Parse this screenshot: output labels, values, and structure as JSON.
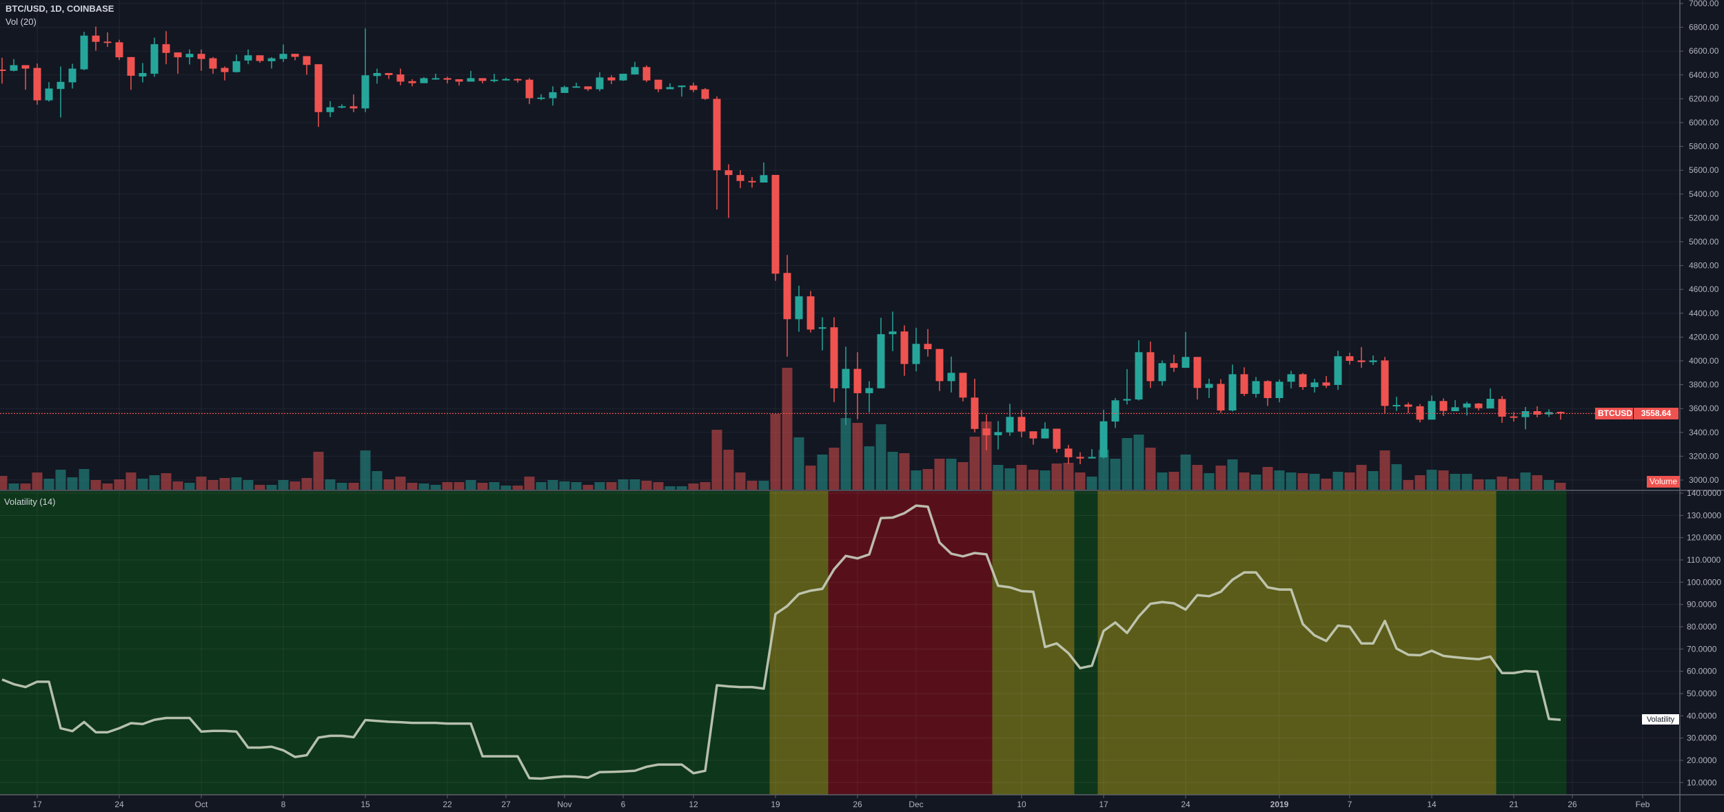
{
  "header": {
    "symbol_title": "BTC/USD, 1D, COINBASE",
    "volume_study": "Vol (20)"
  },
  "volatility_pane": {
    "title": "Volatility (14)",
    "series_tag": "Volatility"
  },
  "price_tags": {
    "symbol": "BTCUSD",
    "last_price": "3558.64",
    "volume_tag": "Volume"
  },
  "colors": {
    "background": "#131722",
    "up": "#26a69a",
    "down": "#ef5350",
    "grid": "#1f2433",
    "text": "#b2b5be",
    "volatility_line": "#c9cfbd",
    "zone_low": "#0e361a",
    "zone_mid": "#5b5c1a",
    "zone_high": "#57101a"
  },
  "chart_data": [
    {
      "type": "candlestick",
      "title": "BTC/USD, 1D, COINBASE",
      "x_unit": "days since Sep 17 2018",
      "start_day": -3,
      "last_price": 3558.64,
      "ylim": [
        2950,
        7000
      ],
      "y_ticks": [
        "7000.00",
        "6800.00",
        "6600.00",
        "6400.00",
        "6200.00",
        "6000.00",
        "5800.00",
        "5600.00",
        "5400.00",
        "5200.00",
        "5000.00",
        "4800.00",
        "4600.00",
        "4400.00",
        "4200.00",
        "4000.00",
        "3800.00",
        "3600.00",
        "3400.00",
        "3200.00",
        "3000.00"
      ],
      "x_ticks": [
        {
          "label": "17",
          "day": 0
        },
        {
          "label": "24",
          "day": 7
        },
        {
          "label": "Oct",
          "day": 14
        },
        {
          "label": "8",
          "day": 21
        },
        {
          "label": "15",
          "day": 28
        },
        {
          "label": "22",
          "day": 35
        },
        {
          "label": "27",
          "day": 40
        },
        {
          "label": "Nov",
          "day": 45
        },
        {
          "label": "6",
          "day": 50
        },
        {
          "label": "12",
          "day": 56
        },
        {
          "label": "19",
          "day": 63
        },
        {
          "label": "26",
          "day": 70
        },
        {
          "label": "Dec",
          "day": 75
        },
        {
          "label": "10",
          "day": 84
        },
        {
          "label": "17",
          "day": 91
        },
        {
          "label": "24",
          "day": 98
        },
        {
          "label": "2019",
          "day": 106,
          "bold": true
        },
        {
          "label": "7",
          "day": 112
        },
        {
          "label": "14",
          "day": 119
        },
        {
          "label": "21",
          "day": 126
        },
        {
          "label": "26",
          "day": 131
        },
        {
          "label": "Feb",
          "day": 137
        }
      ],
      "ohlc": [
        [
          6445,
          6544,
          6327,
          6440
        ],
        [
          6435,
          6533,
          6430,
          6482
        ],
        [
          6482,
          6482,
          6276,
          6453
        ],
        [
          6459,
          6496,
          6150,
          6187
        ],
        [
          6187,
          6340,
          6176,
          6286
        ],
        [
          6282,
          6471,
          6043,
          6342
        ],
        [
          6338,
          6494,
          6286,
          6453
        ],
        [
          6447,
          6762,
          6440,
          6730
        ],
        [
          6730,
          6806,
          6603,
          6678
        ],
        [
          6680,
          6757,
          6635,
          6675
        ],
        [
          6674,
          6695,
          6525,
          6548
        ],
        [
          6550,
          6550,
          6275,
          6393
        ],
        [
          6387,
          6500,
          6337,
          6416
        ],
        [
          6410,
          6713,
          6385,
          6658
        ],
        [
          6658,
          6767,
          6490,
          6585
        ],
        [
          6589,
          6589,
          6410,
          6548
        ],
        [
          6548,
          6614,
          6488,
          6577
        ],
        [
          6577,
          6614,
          6435,
          6534
        ],
        [
          6540,
          6550,
          6410,
          6453
        ],
        [
          6459,
          6471,
          6354,
          6424
        ],
        [
          6424,
          6570,
          6420,
          6515
        ],
        [
          6521,
          6614,
          6490,
          6565
        ],
        [
          6565,
          6565,
          6502,
          6517
        ],
        [
          6515,
          6550,
          6453,
          6540
        ],
        [
          6534,
          6656,
          6509,
          6577
        ],
        [
          6577,
          6577,
          6523,
          6552
        ],
        [
          6558,
          6558,
          6402,
          6484
        ],
        [
          6490,
          6490,
          5964,
          6088
        ],
        [
          6088,
          6180,
          6046,
          6129
        ],
        [
          6129,
          6154,
          6120,
          6137
        ],
        [
          6137,
          6236,
          6088,
          6119
        ],
        [
          6119,
          6790,
          6088,
          6397
        ],
        [
          6391,
          6453,
          6327,
          6416
        ],
        [
          6416,
          6416,
          6366,
          6399
        ],
        [
          6404,
          6453,
          6313,
          6344
        ],
        [
          6348,
          6364,
          6304,
          6331
        ],
        [
          6331,
          6381,
          6331,
          6373
        ],
        [
          6364,
          6410,
          6360,
          6373
        ],
        [
          6373,
          6385,
          6329,
          6360
        ],
        [
          6364,
          6364,
          6311,
          6344
        ],
        [
          6344,
          6434,
          6344,
          6373
        ],
        [
          6373,
          6373,
          6329,
          6350
        ],
        [
          6350,
          6410,
          6337,
          6360
        ],
        [
          6354,
          6377,
          6354,
          6366
        ],
        [
          6366,
          6371,
          6335,
          6354
        ],
        [
          6360,
          6373,
          6155,
          6205
        ],
        [
          6206,
          6238,
          6188,
          6210
        ],
        [
          6205,
          6305,
          6143,
          6255
        ],
        [
          6249,
          6310,
          6249,
          6298
        ],
        [
          6294,
          6335,
          6294,
          6304
        ],
        [
          6304,
          6304,
          6265,
          6280
        ],
        [
          6280,
          6422,
          6263,
          6379
        ],
        [
          6379,
          6397,
          6323,
          6354
        ],
        [
          6354,
          6410,
          6350,
          6410
        ],
        [
          6404,
          6510,
          6404,
          6466
        ],
        [
          6466,
          6480,
          6340,
          6354
        ],
        [
          6360,
          6360,
          6255,
          6280
        ],
        [
          6280,
          6330,
          6280,
          6298
        ],
        [
          6298,
          6311,
          6218,
          6311
        ],
        [
          6311,
          6335,
          6255,
          6274
        ],
        [
          6280,
          6290,
          6190,
          6199
        ],
        [
          6199,
          6220,
          5270,
          5600
        ],
        [
          5600,
          5650,
          5200,
          5560
        ],
        [
          5560,
          5600,
          5450,
          5510
        ],
        [
          5510,
          5543,
          5454,
          5505
        ],
        [
          5497,
          5665,
          5497,
          5559
        ],
        [
          5561,
          5561,
          4672,
          4732
        ],
        [
          4738,
          4889,
          4036,
          4350
        ],
        [
          4350,
          4631,
          4245,
          4542
        ],
        [
          4542,
          4587,
          4238,
          4263
        ],
        [
          4270,
          4366,
          4088,
          4282
        ],
        [
          4282,
          4366,
          3654,
          3770
        ],
        [
          3770,
          4119,
          3462,
          3933
        ],
        [
          3933,
          4073,
          3510,
          3729
        ],
        [
          3729,
          3830,
          3568,
          3772
        ],
        [
          3770,
          4362,
          3770,
          4224
        ],
        [
          4224,
          4414,
          4082,
          4247
        ],
        [
          4247,
          4298,
          3875,
          3974
        ],
        [
          3974,
          4278,
          3912,
          4143
        ],
        [
          4143,
          4267,
          4036,
          4098
        ],
        [
          4100,
          4100,
          3747,
          3830
        ],
        [
          3830,
          4036,
          3735,
          3900
        ],
        [
          3900,
          3900,
          3660,
          3692
        ],
        [
          3692,
          3850,
          3400,
          3429
        ],
        [
          3433,
          3551,
          3250,
          3376
        ],
        [
          3376,
          3495,
          3256,
          3403
        ],
        [
          3400,
          3640,
          3371,
          3530
        ],
        [
          3530,
          3588,
          3359,
          3407
        ],
        [
          3409,
          3409,
          3297,
          3349
        ],
        [
          3349,
          3485,
          3349,
          3431
        ],
        [
          3431,
          3431,
          3231,
          3262
        ],
        [
          3264,
          3295,
          3137,
          3191
        ],
        [
          3194,
          3233,
          3133,
          3181
        ],
        [
          3181,
          3260,
          3181,
          3194
        ],
        [
          3190,
          3590,
          3181,
          3493
        ],
        [
          3491,
          3688,
          3437,
          3669
        ],
        [
          3667,
          3931,
          3634,
          3680
        ],
        [
          3676,
          4173,
          3667,
          4073
        ],
        [
          4073,
          4162,
          3773,
          3830
        ],
        [
          3830,
          4004,
          3792,
          3981
        ],
        [
          3981,
          4052,
          3908,
          3942
        ],
        [
          3942,
          4243,
          3942,
          4033
        ],
        [
          4033,
          4033,
          3676,
          3773
        ],
        [
          3773,
          3850,
          3688,
          3807
        ],
        [
          3807,
          3846,
          3564,
          3584
        ],
        [
          3584,
          3969,
          3576,
          3888
        ],
        [
          3888,
          3946,
          3705,
          3723
        ],
        [
          3723,
          3865,
          3692,
          3830
        ],
        [
          3830,
          3838,
          3622,
          3688
        ],
        [
          3688,
          3844,
          3653,
          3825
        ],
        [
          3825,
          3917,
          3769,
          3888
        ],
        [
          3888,
          3898,
          3757,
          3780
        ],
        [
          3780,
          3850,
          3734,
          3819
        ],
        [
          3819,
          3873,
          3773,
          3792
        ],
        [
          3798,
          4085,
          3757,
          4039
        ],
        [
          4039,
          4069,
          3969,
          4000
        ],
        [
          4004,
          4116,
          3942,
          3990
        ],
        [
          3990,
          4046,
          3965,
          4004
        ],
        [
          4004,
          4033,
          3557,
          3622
        ],
        [
          3622,
          3699,
          3580,
          3630
        ],
        [
          3634,
          3651,
          3561,
          3615
        ],
        [
          3619,
          3638,
          3484,
          3507
        ],
        [
          3507,
          3709,
          3507,
          3663
        ],
        [
          3663,
          3686,
          3538,
          3580
        ],
        [
          3578,
          3671,
          3578,
          3611
        ],
        [
          3609,
          3657,
          3541,
          3642
        ],
        [
          3642,
          3647,
          3584,
          3603
        ],
        [
          3601,
          3769,
          3601,
          3682
        ],
        [
          3680,
          3705,
          3480,
          3532
        ],
        [
          3534,
          3570,
          3491,
          3530
        ],
        [
          3528,
          3613,
          3426,
          3578
        ],
        [
          3578,
          3619,
          3526,
          3549
        ],
        [
          3551,
          3593,
          3530,
          3570
        ],
        [
          3572,
          3575,
          3507,
          3558.64
        ]
      ],
      "volume_unit": "relative",
      "volume": [
        20,
        9,
        9,
        25,
        16,
        29,
        18,
        30,
        14,
        9,
        15,
        25,
        16,
        21,
        24,
        12,
        10,
        19,
        14,
        17,
        18,
        14,
        7,
        7,
        14,
        12,
        17,
        55,
        15,
        10,
        10,
        57,
        27,
        15,
        19,
        10,
        9,
        7,
        11,
        11,
        14,
        10,
        11,
        6,
        6,
        19,
        11,
        14,
        12,
        11,
        7,
        11,
        11,
        15,
        15,
        13,
        11,
        5,
        5,
        9,
        11,
        87,
        58,
        25,
        13,
        13,
        110,
        177,
        76,
        35,
        51,
        61,
        104,
        97,
        63,
        95,
        55,
        53,
        28,
        30,
        45,
        45,
        40,
        77,
        99,
        36,
        31,
        36,
        29,
        28,
        38,
        39,
        25,
        19,
        58,
        45,
        75,
        80,
        61,
        25,
        26,
        51,
        36,
        24,
        35,
        44,
        25,
        22,
        33,
        28,
        25,
        24,
        23,
        16,
        26,
        25,
        36,
        27,
        57,
        37,
        14,
        21,
        29,
        28,
        23,
        23,
        15,
        15,
        19,
        16,
        25,
        21,
        14,
        10
      ]
    },
    {
      "type": "line",
      "title": "Volatility (14)",
      "series_name": "Volatility",
      "start_day": -3,
      "ylim": [
        5,
        141
      ],
      "y_ticks": [
        "140.0000",
        "130.0000",
        "120.0000",
        "110.0000",
        "100.0000",
        "90.0000",
        "80.0000",
        "70.0000",
        "60.0000",
        "50.0000",
        "40.0000",
        "30.0000",
        "20.0000",
        "10.0000"
      ],
      "values": [
        56.3,
        54.2,
        52.9,
        55.3,
        55.3,
        34.4,
        33.1,
        37.2,
        32.6,
        32.6,
        34.4,
        36.7,
        36.3,
        38.2,
        39.0,
        39.0,
        39.0,
        32.9,
        33.2,
        33.2,
        32.9,
        25.7,
        25.7,
        26.1,
        24.5,
        21.5,
        22.3,
        30.2,
        31.0,
        31.0,
        30.4,
        38.1,
        37.7,
        37.3,
        37.1,
        36.8,
        36.8,
        36.8,
        36.5,
        36.5,
        36.5,
        21.8,
        21.8,
        21.8,
        21.8,
        12.0,
        11.8,
        12.4,
        12.8,
        12.7,
        12.2,
        14.7,
        14.8,
        15.0,
        15.3,
        17.1,
        18.1,
        18.1,
        18.1,
        14.2,
        15.3,
        53.7,
        53.2,
        52.9,
        52.9,
        52.2,
        85.7,
        89.3,
        94.7,
        96.2,
        97.0,
        105.8,
        111.8,
        110.7,
        112.5,
        128.8,
        129.0,
        131.0,
        134.4,
        133.9,
        117.8,
        112.8,
        111.6,
        113.1,
        112.5,
        98.4,
        97.7,
        96.0,
        95.7,
        70.9,
        72.5,
        68.1,
        61.4,
        62.5,
        78.1,
        81.9,
        77.2,
        84.6,
        90.3,
        91.1,
        90.5,
        87.7,
        94.2,
        93.7,
        95.7,
        101.1,
        104.4,
        104.4,
        97.7,
        96.7,
        96.7,
        81.2,
        76.1,
        73.6,
        80.5,
        80.0,
        72.5,
        72.5,
        82.6,
        70.2,
        67.4,
        67.2,
        69.2,
        66.9,
        66.3,
        65.8,
        65.4,
        66.6,
        59.2,
        59.2,
        60.1,
        59.8,
        38.6,
        38.2
      ],
      "zones": [
        {
          "from": -3,
          "to": 62,
          "level": "low"
        },
        {
          "from": 63,
          "to": 67,
          "level": "mid"
        },
        {
          "from": 68,
          "to": 81,
          "level": "high"
        },
        {
          "from": 82,
          "to": 88,
          "level": "mid"
        },
        {
          "from": 89,
          "to": 90,
          "level": "low"
        },
        {
          "from": 91,
          "to": 124,
          "level": "mid"
        },
        {
          "from": 125,
          "to": 130,
          "level": "low"
        }
      ]
    }
  ]
}
